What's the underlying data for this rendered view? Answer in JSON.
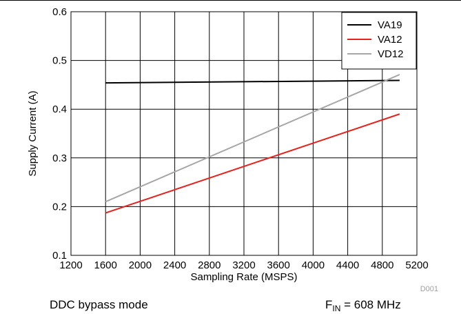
{
  "chart_data": {
    "type": "line",
    "xlabel": "Sampling Rate (MSPS)",
    "ylabel": "Supply Current (A)",
    "xlim": [
      1200,
      5200
    ],
    "ylim": [
      0.1,
      0.6
    ],
    "xticks": [
      1200,
      1600,
      2000,
      2400,
      2800,
      3200,
      3600,
      4000,
      4400,
      4800,
      5200
    ],
    "yticks": [
      0.1,
      0.2,
      0.3,
      0.4,
      0.5,
      0.6
    ],
    "xtick_labels": [
      "1200",
      "1600",
      "2000",
      "2400",
      "2800",
      "3200",
      "3600",
      "4000",
      "4400",
      "4800",
      "5200"
    ],
    "ytick_labels": [
      "0.1",
      "0.2",
      "0.3",
      "0.4",
      "0.5",
      "0.6"
    ],
    "grid": true,
    "legend_position": "top-right",
    "series": [
      {
        "name": "VA19",
        "color": "#000000",
        "x": [
          1600,
          5000
        ],
        "y": [
          0.454,
          0.459
        ]
      },
      {
        "name": "VA12",
        "color": "#e8211d",
        "x": [
          1600,
          5000
        ],
        "y": [
          0.187,
          0.39
        ]
      },
      {
        "name": "VD12",
        "color": "#a6a6a6",
        "x": [
          1600,
          5000
        ],
        "y": [
          0.21,
          0.471
        ]
      }
    ],
    "watermark": "D001"
  },
  "captions": {
    "left": "DDC bypass mode",
    "right_prefix": "F",
    "right_sub": "IN",
    "right_suffix": " = 608 MHz"
  }
}
